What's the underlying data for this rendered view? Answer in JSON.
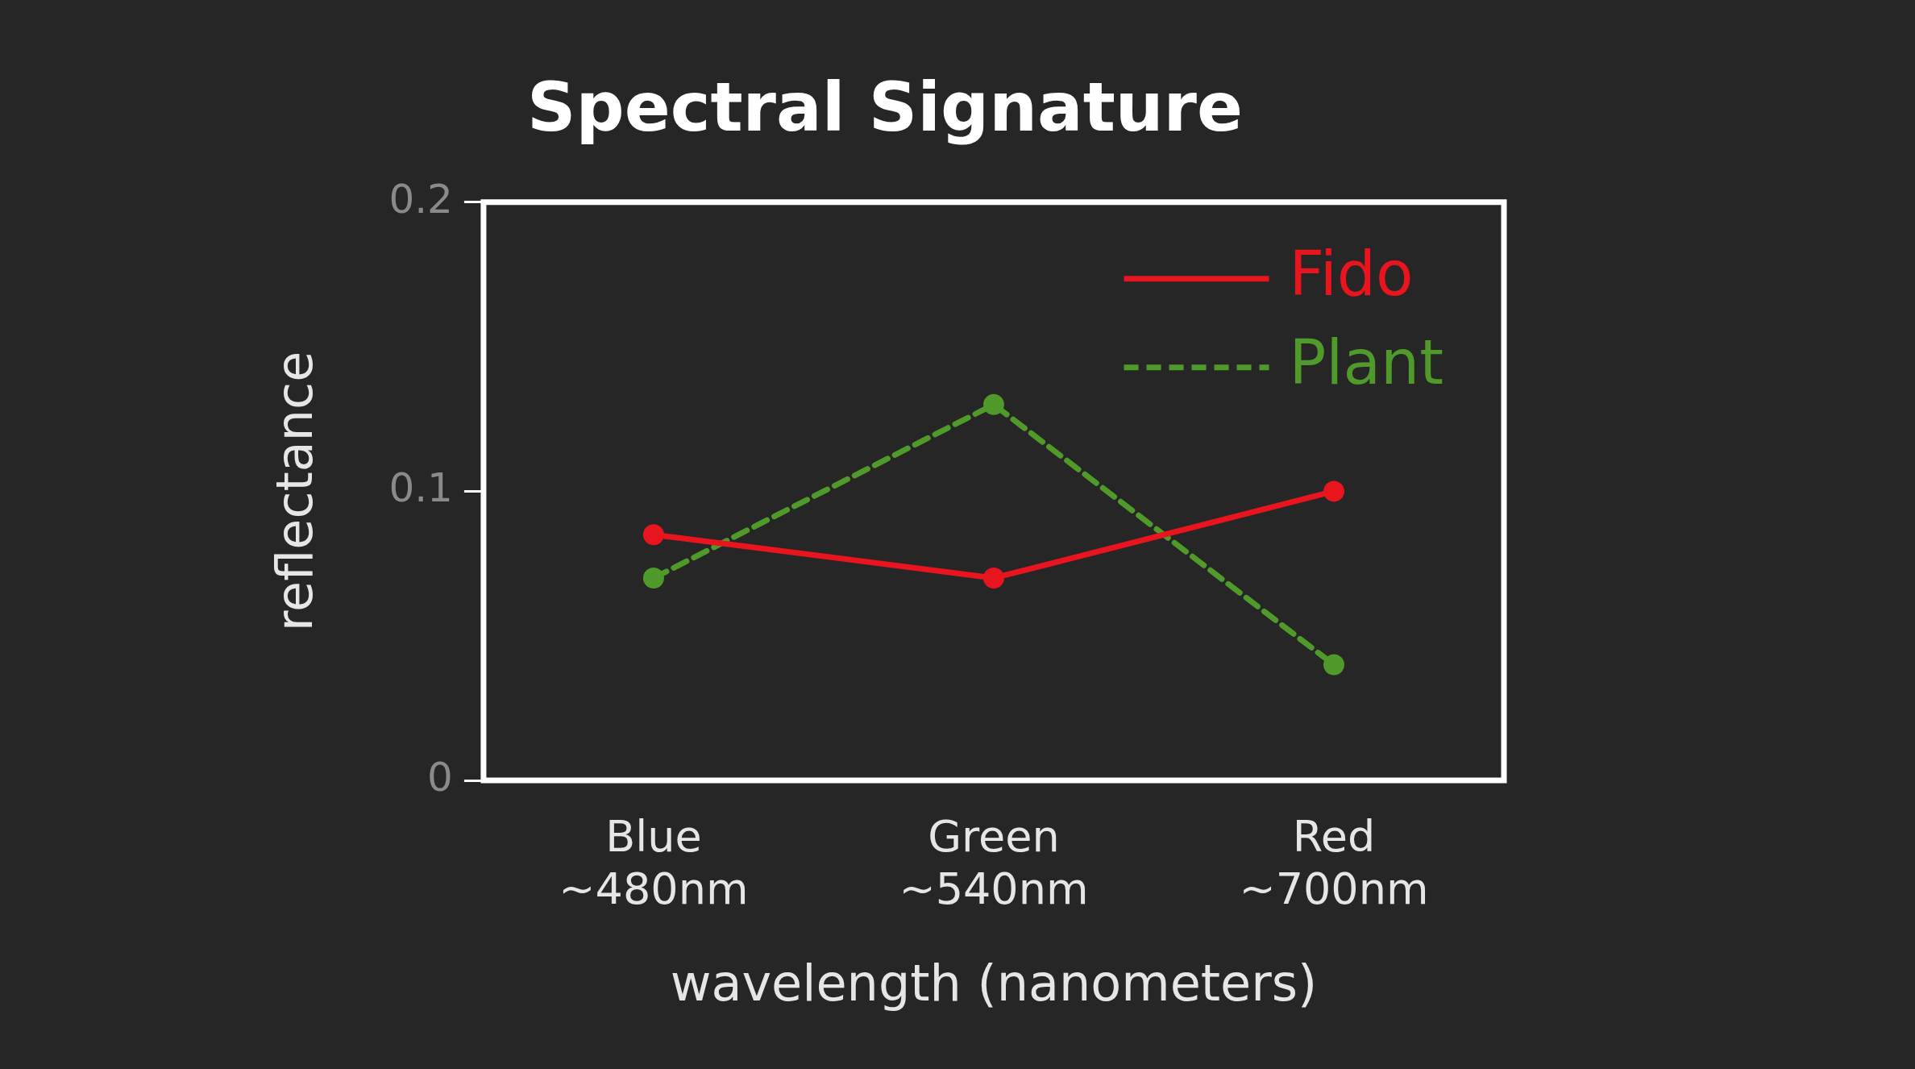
{
  "chart_data": {
    "type": "line",
    "title": "Spectral Signature",
    "xlabel": "wavelength (nanometers)",
    "ylabel": "reflectance",
    "categories": [
      "Blue\n~480nm",
      "Green\n~540nm",
      "Red\n~700nm"
    ],
    "series": [
      {
        "name": "Fido",
        "color": "#e8141e",
        "values": [
          0.085,
          0.07,
          0.1
        ],
        "line_style": "solid"
      },
      {
        "name": "Plant",
        "color": "#4f9a2a",
        "values": [
          0.07,
          0.13,
          0.04
        ],
        "line_style": "dashed"
      }
    ],
    "ylim": [
      0,
      0.2
    ],
    "yticks": [
      0,
      0.1,
      0.2
    ],
    "grid": false,
    "legend": "top right",
    "marker": "circle"
  }
}
